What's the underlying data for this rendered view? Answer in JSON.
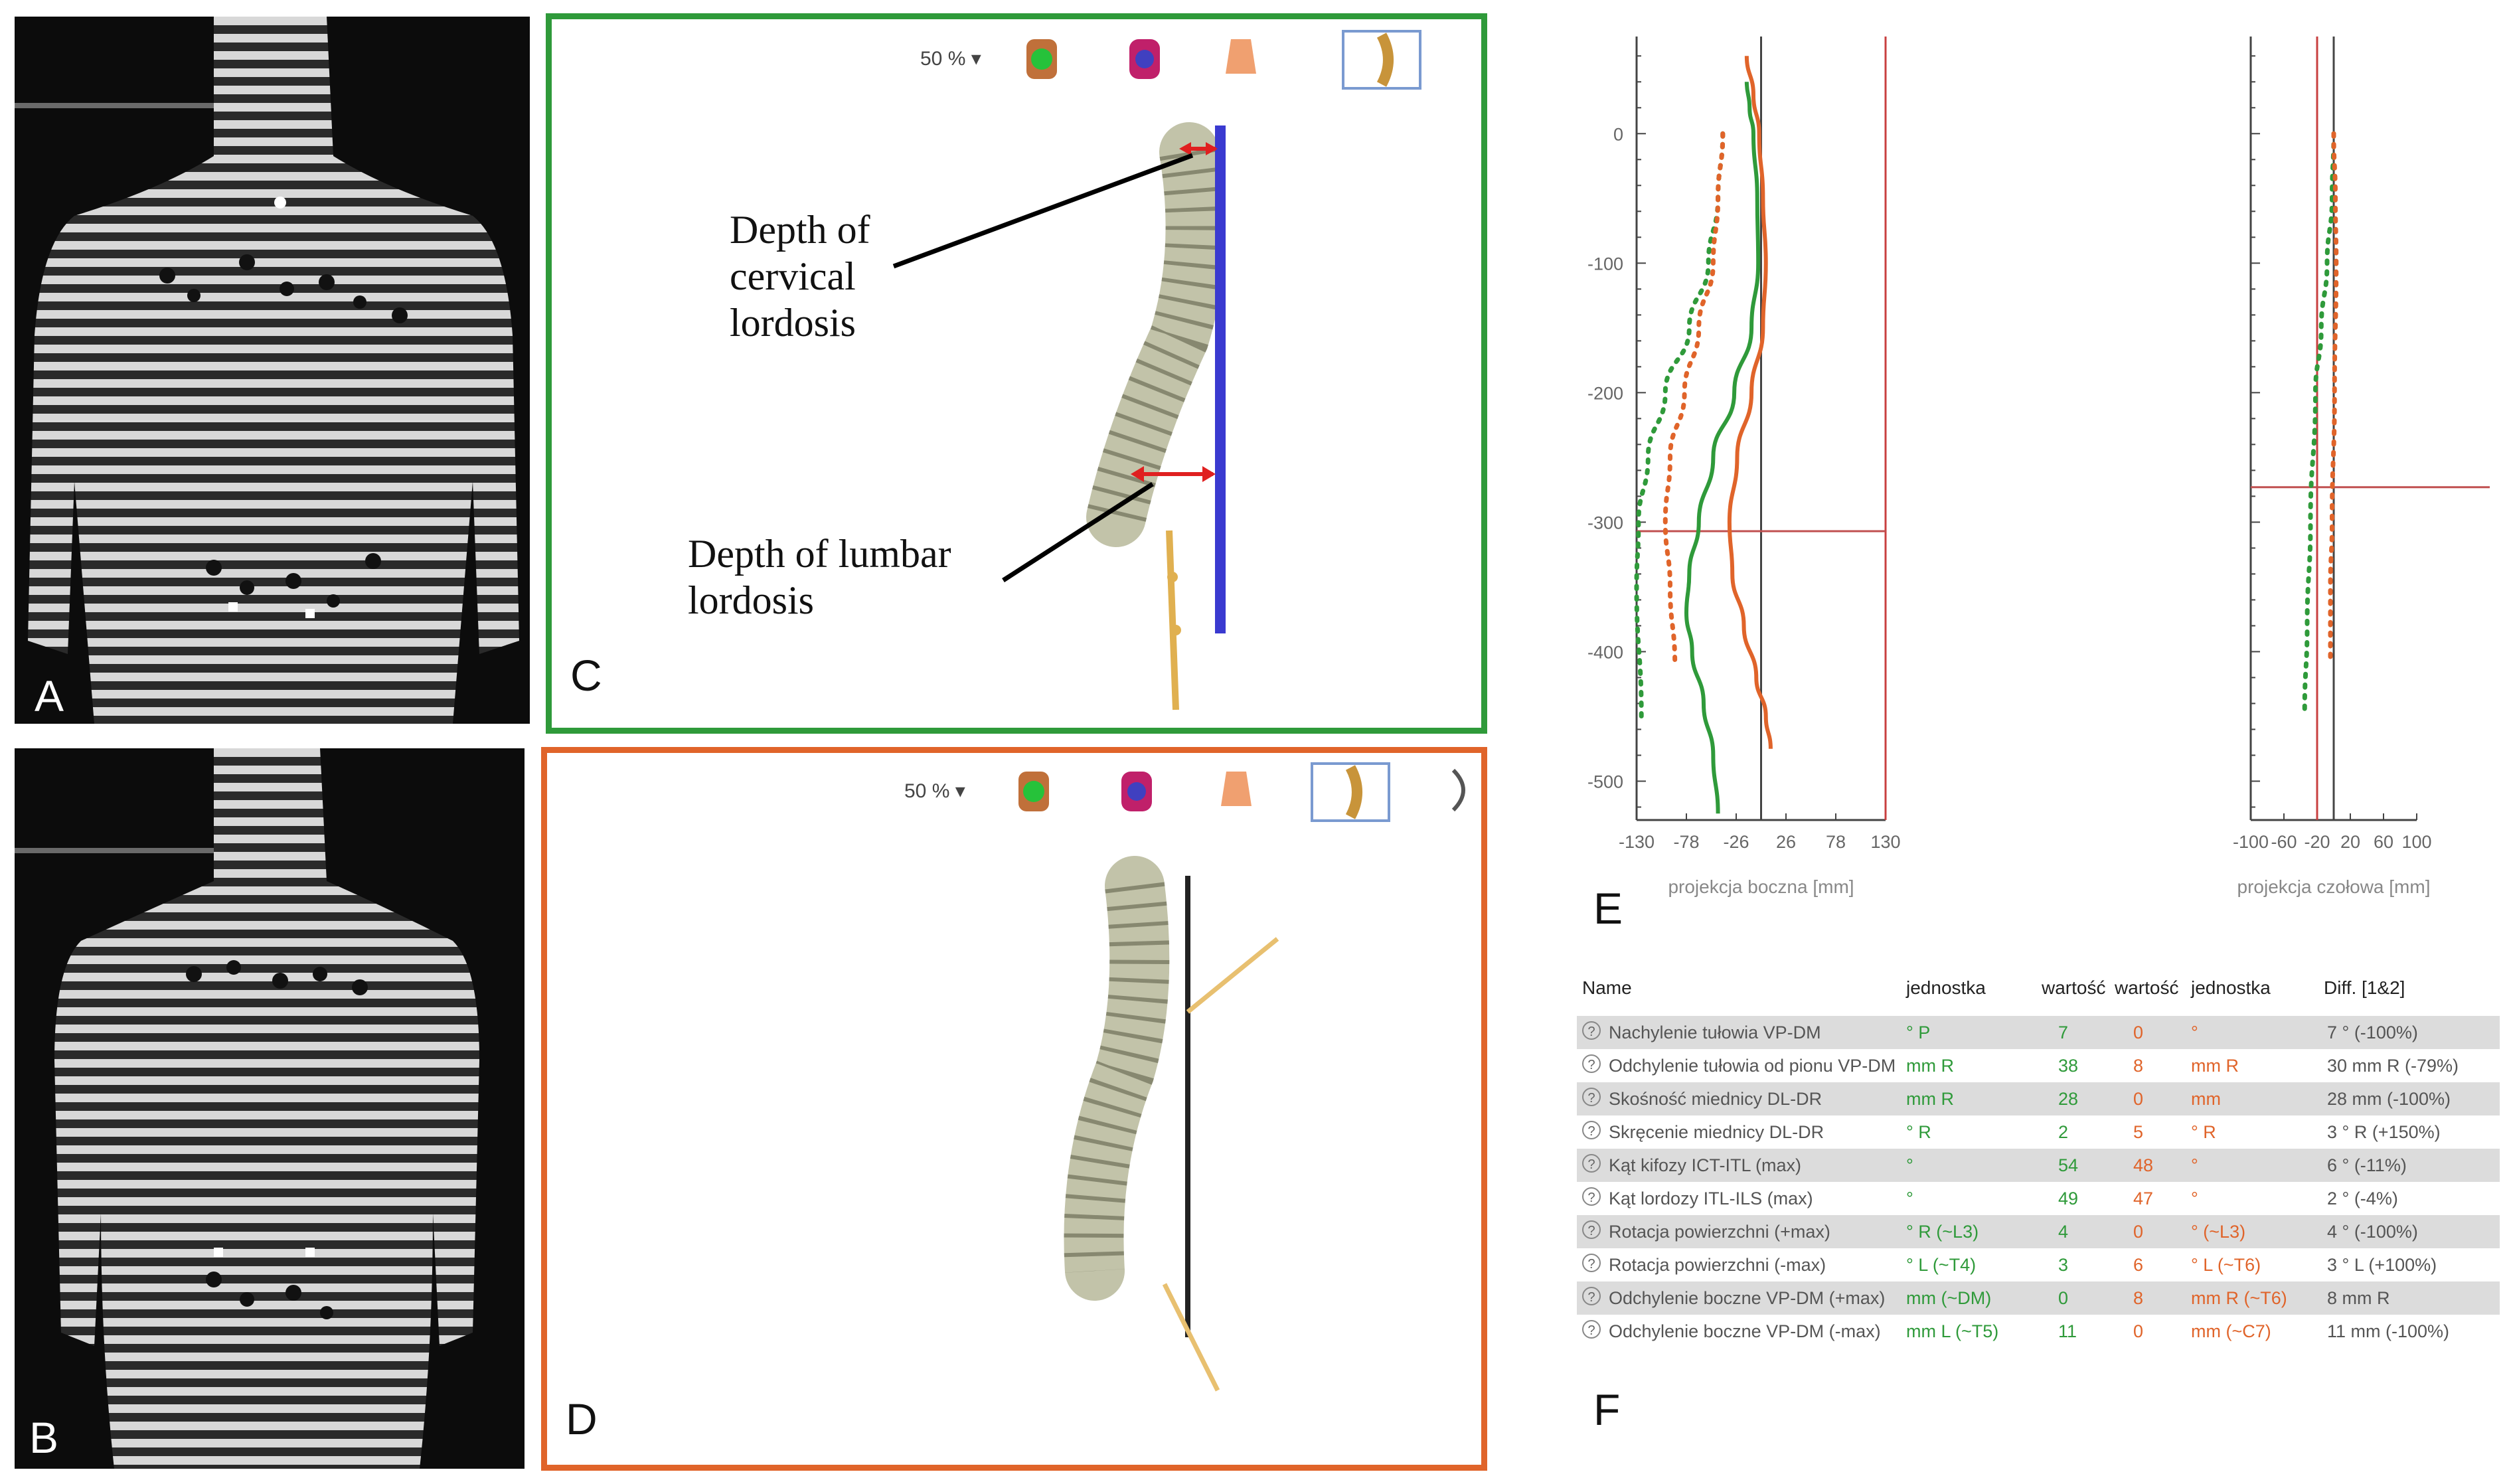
{
  "panels": {
    "a": {
      "label": "A"
    },
    "b": {
      "label": "B"
    },
    "c": {
      "label": "C",
      "zoom": "50 % ▾",
      "annotation_cervical": "Depth of cervical lordosis",
      "annotation_cervical_lines": [
        "Depth of",
        "cervical",
        "lordosis"
      ],
      "annotation_lumbar_lines": [
        "Depth of lumbar",
        "lordosis"
      ]
    },
    "d": {
      "label": "D",
      "zoom": "50 % ▾"
    },
    "e": {
      "label": "E"
    },
    "f": {
      "label": "F"
    }
  },
  "toolbar_icons": [
    "green-body-icon",
    "red-body-icon",
    "torso-icon",
    "spine-profile-icon"
  ],
  "colors": {
    "green": "#2f9a3a",
    "orange": "#e0642a",
    "blue": "#3a3ad0",
    "red_marker": "#e02020",
    "plumb": "#e0b050"
  },
  "chart_data": [
    {
      "type": "line",
      "title": "",
      "xlabel": "projekcja boczna [mm]",
      "ylabel": "",
      "xticks": [
        "-130",
        "-78",
        "-26",
        "26",
        "78",
        "130"
      ],
      "yticks": [
        "0",
        "-100",
        "-200",
        "-300",
        "-400",
        "-500"
      ],
      "xlim": [
        -130,
        130
      ],
      "ylim": [
        -530,
        75
      ],
      "crosshair": {
        "x": 0,
        "y": -307
      },
      "series": [
        {
          "name": "green solid",
          "color": "#2f9a3a",
          "style": "solid",
          "x": [
            -15,
            -12,
            -8,
            -4,
            -3,
            -10,
            -28,
            -50,
            -65,
            -75,
            -78,
            -72,
            -60,
            -50,
            -45
          ],
          "y": [
            40,
            20,
            0,
            -50,
            -100,
            -150,
            -200,
            -250,
            -300,
            -340,
            -370,
            -400,
            -440,
            -480,
            -525
          ]
        },
        {
          "name": "orange solid",
          "color": "#e0642a",
          "style": "solid",
          "x": [
            -15,
            -8,
            -2,
            2,
            5,
            2,
            -10,
            -25,
            -33,
            -30,
            -18,
            -5,
            5,
            10
          ],
          "y": [
            60,
            30,
            0,
            -50,
            -100,
            -150,
            -200,
            -250,
            -300,
            -340,
            -380,
            -420,
            -450,
            -475
          ]
        },
        {
          "name": "green dotted",
          "color": "#2f9a3a",
          "style": "dotted",
          "x": [
            -40,
            -45,
            -55,
            -75,
            -100,
            -118,
            -128,
            -130,
            -125
          ],
          "y": [
            0,
            -50,
            -100,
            -150,
            -200,
            -250,
            -300,
            -350,
            -450
          ]
        },
        {
          "name": "orange dotted",
          "color": "#e0642a",
          "style": "dotted",
          "x": [
            -40,
            -45,
            -50,
            -65,
            -80,
            -95,
            -100,
            -95,
            -90
          ],
          "y": [
            0,
            -50,
            -100,
            -150,
            -200,
            -250,
            -300,
            -350,
            -410
          ]
        }
      ]
    },
    {
      "type": "line",
      "title": "",
      "xlabel": "projekcja czołowa [mm]",
      "ylabel": "",
      "xticks": [
        "-100",
        "-60",
        "-20",
        "20",
        "60",
        "100"
      ],
      "xlim": [
        -100,
        100
      ],
      "ylim": [
        -530,
        75
      ],
      "crosshair": {
        "x": 0,
        "y": -273
      },
      "series": [
        {
          "name": "green dotted",
          "color": "#2f9a3a",
          "style": "dotted",
          "x": [
            0,
            -2,
            -8,
            -15,
            -22,
            -28,
            -32,
            -35
          ],
          "y": [
            0,
            -50,
            -100,
            -150,
            -200,
            -300,
            -380,
            -445
          ]
        },
        {
          "name": "orange dotted",
          "color": "#e0642a",
          "style": "dotted",
          "x": [
            0,
            2,
            3,
            1,
            -2,
            -4,
            -4
          ],
          "y": [
            0,
            -50,
            -100,
            -200,
            -300,
            -350,
            -410
          ]
        }
      ]
    }
  ],
  "table": {
    "headers": [
      "Name",
      "jednostka",
      "wartość",
      "wartość",
      "jednostka",
      "Diff. [1&2]"
    ],
    "rows": [
      {
        "name": "Nachylenie tułowia VP-DM",
        "unit1": "° P",
        "val1": "7",
        "val2": "0",
        "unit2": "°",
        "diff": "7 ° (-100%)"
      },
      {
        "name": "Odchylenie tułowia od pionu VP-DM",
        "unit1": "mm R",
        "val1": "38",
        "val2": "8",
        "unit2": "mm R",
        "diff": "30 mm R (-79%)"
      },
      {
        "name": "Skośność miednicy DL-DR",
        "unit1": "mm R",
        "val1": "28",
        "val2": "0",
        "unit2": "mm",
        "diff": "28 mm (-100%)"
      },
      {
        "name": "Skręcenie miednicy DL-DR",
        "unit1": "° R",
        "val1": "2",
        "val2": "5",
        "unit2": "° R",
        "diff": "3 ° R (+150%)"
      },
      {
        "name": "Kąt kifozy ICT-ITL (max)",
        "unit1": "°",
        "val1": "54",
        "val2": "48",
        "unit2": "°",
        "diff": "6 ° (-11%)"
      },
      {
        "name": "Kąt lordozy ITL-ILS (max)",
        "unit1": "°",
        "val1": "49",
        "val2": "47",
        "unit2": "°",
        "diff": "2 ° (-4%)"
      },
      {
        "name": "Rotacja powierzchni (+max)",
        "unit1": "° R (~L3)",
        "val1": "4",
        "val2": "0",
        "unit2": "° (~L3)",
        "diff": "4 ° (-100%)"
      },
      {
        "name": "Rotacja powierzchni (-max)",
        "unit1": "° L (~T4)",
        "val1": "3",
        "val2": "6",
        "unit2": "° L (~T6)",
        "diff": "3 ° L (+100%)"
      },
      {
        "name": "Odchylenie boczne VP-DM (+max)",
        "unit1": "mm (~DM)",
        "val1": "0",
        "val2": "8",
        "unit2": "mm R (~T6)",
        "diff": "8 mm R"
      },
      {
        "name": "Odchylenie boczne VP-DM (-max)",
        "unit1": "mm L (~T5)",
        "val1": "11",
        "val2": "0",
        "unit2": "mm (~C7)",
        "diff": "11 mm (-100%)"
      }
    ]
  }
}
